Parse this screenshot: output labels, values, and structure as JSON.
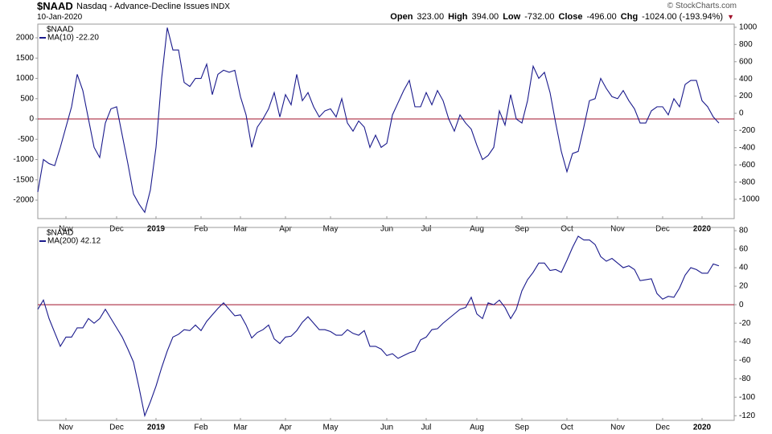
{
  "header": {
    "symbol": "$NAAD",
    "name": "Nasdaq - Advance-Decline Issues",
    "exchange": "INDX",
    "date": "10-Jan-2020",
    "copyright": "© StockCharts.com",
    "quotes": [
      {
        "label": "Open",
        "value": "323.00"
      },
      {
        "label": "High",
        "value": "394.00"
      },
      {
        "label": "Low",
        "value": "-732.00"
      },
      {
        "label": "Close",
        "value": "-496.00"
      },
      {
        "label": "Chg",
        "value": "-1024.00 (-193.94%)"
      }
    ]
  },
  "chart_data": [
    {
      "type": "line",
      "legend_title": "$NAAD",
      "categories": [
        null,
        null,
        null,
        null,
        null,
        "Nov",
        null,
        null,
        null,
        null,
        null,
        null,
        null,
        null,
        "Dec",
        null,
        null,
        null,
        null,
        null,
        null,
        "2019",
        null,
        null,
        null,
        null,
        null,
        null,
        null,
        "Feb",
        null,
        null,
        null,
        null,
        null,
        null,
        "Mar",
        null,
        null,
        null,
        null,
        null,
        null,
        null,
        "Apr",
        null,
        null,
        null,
        null,
        null,
        null,
        null,
        "May",
        null,
        null,
        null,
        null,
        null,
        null,
        null,
        null,
        null,
        "Jun",
        null,
        null,
        null,
        null,
        null,
        null,
        "Jul",
        null,
        null,
        null,
        null,
        null,
        null,
        null,
        null,
        "Aug",
        null,
        null,
        null,
        null,
        null,
        null,
        null,
        "Sep",
        null,
        null,
        null,
        null,
        null,
        null,
        null,
        "Oct",
        null,
        null,
        null,
        null,
        null,
        null,
        null,
        null,
        "Nov",
        null,
        null,
        null,
        null,
        null,
        null,
        null,
        "Dec",
        null,
        null,
        null,
        null,
        null,
        null,
        "2020",
        null,
        null,
        null
      ],
      "series": [
        {
          "name": "MA(10) -22.20",
          "color": "#1a1a8c",
          "values": [
            -1800,
            -1000,
            -1100,
            -1150,
            -700,
            -200,
            300,
            1100,
            700,
            0,
            -700,
            -950,
            -100,
            250,
            300,
            -400,
            -1100,
            -1850,
            -2100,
            -2300,
            -1750,
            -700,
            1000,
            2250,
            1700,
            1700,
            900,
            800,
            1000,
            1000,
            1350,
            600,
            1100,
            1200,
            1150,
            1200,
            550,
            100,
            -700,
            -200,
            0,
            250,
            650,
            50,
            600,
            350,
            1100,
            450,
            650,
            300,
            50,
            200,
            250,
            50,
            500,
            -100,
            -300,
            -50,
            -200,
            -700,
            -400,
            -700,
            -600,
            100,
            400,
            700,
            950,
            300,
            300,
            650,
            350,
            700,
            450,
            0,
            -300,
            100,
            -100,
            -250,
            -650,
            -1000,
            -900,
            -700,
            200,
            -150,
            600,
            0,
            -100,
            450,
            1300,
            1000,
            1150,
            650,
            -100,
            -800,
            -1300,
            -850,
            -800,
            -200,
            450,
            500,
            1000,
            750,
            550,
            500,
            700,
            450,
            250,
            -100,
            -100,
            200,
            300,
            300,
            100,
            500,
            300,
            850,
            950,
            950,
            450,
            300,
            50,
            -100
          ]
        }
      ],
      "ylim": [
        -2455,
        2337
      ],
      "yticks": [
        -2000,
        -1500,
        -1000,
        -500,
        0,
        500,
        1000,
        1500,
        2000
      ],
      "y2lim": [
        -1224,
        1037
      ],
      "y2ticks": [
        -1000,
        -800,
        -600,
        -400,
        -200,
        0,
        200,
        400,
        600,
        800,
        1000
      ],
      "reference_line": 0,
      "reference_color": "#a0102a"
    },
    {
      "type": "line",
      "legend_title": "$NAAD",
      "categories": [
        null,
        null,
        null,
        null,
        null,
        "Nov",
        null,
        null,
        null,
        null,
        null,
        null,
        null,
        null,
        "Dec",
        null,
        null,
        null,
        null,
        null,
        null,
        "2019",
        null,
        null,
        null,
        null,
        null,
        null,
        null,
        "Feb",
        null,
        null,
        null,
        null,
        null,
        null,
        "Mar",
        null,
        null,
        null,
        null,
        null,
        null,
        null,
        "Apr",
        null,
        null,
        null,
        null,
        null,
        null,
        null,
        "May",
        null,
        null,
        null,
        null,
        null,
        null,
        null,
        null,
        null,
        "Jun",
        null,
        null,
        null,
        null,
        null,
        null,
        "Jul",
        null,
        null,
        null,
        null,
        null,
        null,
        null,
        null,
        "Aug",
        null,
        null,
        null,
        null,
        null,
        null,
        null,
        "Sep",
        null,
        null,
        null,
        null,
        null,
        null,
        null,
        "Oct",
        null,
        null,
        null,
        null,
        null,
        null,
        null,
        null,
        "Nov",
        null,
        null,
        null,
        null,
        null,
        null,
        null,
        "Dec",
        null,
        null,
        null,
        null,
        null,
        null,
        "2020",
        null,
        null,
        null
      ],
      "series": [
        {
          "name": "MA(200) 42.12",
          "color": "#1a1a8c",
          "values": [
            -5,
            5,
            -15,
            -30,
            -45,
            -35,
            -35,
            -25,
            -25,
            -15,
            -20,
            -15,
            -5,
            -15,
            -25,
            -35,
            -48,
            -62,
            -90,
            -120,
            -105,
            -88,
            -68,
            -50,
            -35,
            -32,
            -27,
            -28,
            -22,
            -28,
            -18,
            -11,
            -4,
            2,
            -5,
            -12,
            -11,
            -22,
            -36,
            -30,
            -27,
            -22,
            -37,
            -42,
            -35,
            -34,
            -28,
            -19,
            -13,
            -20,
            -27,
            -27,
            -29,
            -33,
            -33,
            -27,
            -31,
            -33,
            -28,
            -45,
            -45,
            -48,
            -55,
            -53,
            -58,
            -55,
            -52,
            -50,
            -38,
            -35,
            -27,
            -26,
            -20,
            -15,
            -10,
            -5,
            -3,
            8,
            -10,
            -15,
            2,
            0,
            5,
            -3,
            -15,
            -5,
            15,
            27,
            35,
            45,
            45,
            37,
            38,
            35,
            48,
            62,
            74,
            70,
            70,
            65,
            52,
            47,
            50,
            45,
            40,
            42,
            38,
            26,
            27,
            28,
            12,
            6,
            9,
            8,
            18,
            32,
            40,
            38,
            34,
            34,
            44,
            42
          ]
        }
      ],
      "ylim": [
        -125,
        83.5
      ],
      "yticks": [
        -120,
        -100,
        -80,
        -60,
        -40,
        -20,
        0,
        20,
        40,
        60,
        80
      ],
      "reference_line": 0,
      "reference_color": "#a0102a"
    }
  ]
}
